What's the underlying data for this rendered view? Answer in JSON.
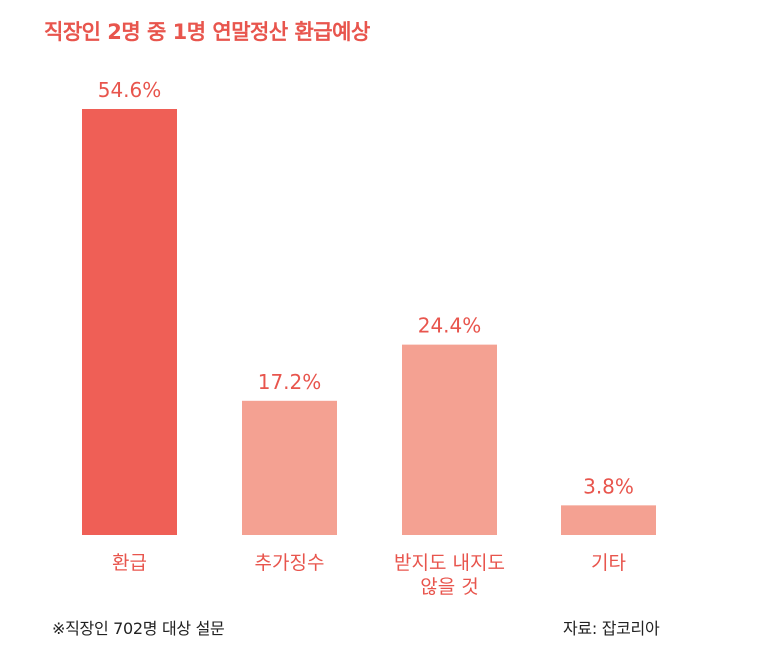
{
  "title": "직장인 2명 중 1명 연말정산 환급예상",
  "footnote": "※직장인 702명 대상 설문",
  "source": "자료: 잡코리아",
  "colors": {
    "title": "#e8554d",
    "highlight_bar": "#ef5f56",
    "bar": "#f4a192",
    "label": "#e8554d"
  },
  "chart_data": {
    "type": "bar",
    "categories": [
      [
        "환급"
      ],
      [
        "추가징수"
      ],
      [
        "받지도 내지도",
        "않을 것"
      ],
      [
        "기타"
      ]
    ],
    "values": [
      54.6,
      17.2,
      24.4,
      3.8
    ],
    "value_labels": [
      "54.6%",
      "17.2%",
      "24.4%",
      "3.8%"
    ],
    "highlight_index": 0,
    "unit": "%",
    "ylim": [
      0,
      54.6
    ],
    "grid": false,
    "legend": "none"
  }
}
